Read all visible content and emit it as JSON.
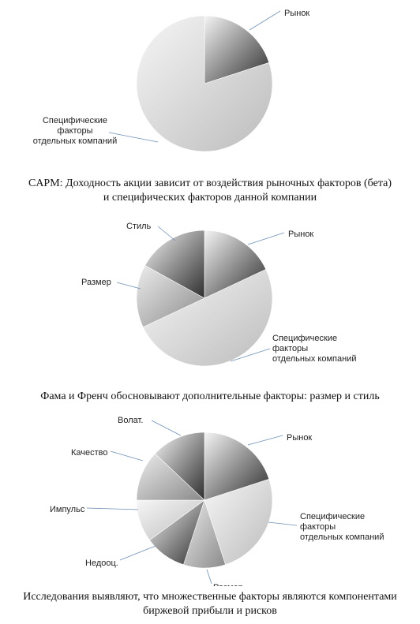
{
  "chart_data": [
    {
      "type": "pie",
      "categories": [
        "Рынок",
        "Специфические факторы отдельных компаний"
      ],
      "values": [
        20,
        80
      ],
      "colors": [
        "grad-dark",
        "grad-light"
      ],
      "title": "",
      "caption_lines": [
        "CAPM: Доходность акции зависит от воздействия рыночных факторов (бета)",
        "и специфических факторов данной компании"
      ]
    },
    {
      "type": "pie",
      "categories": [
        "Рынок",
        "Специфические факторы отдельных компаний",
        "Размер",
        "Стиль"
      ],
      "values": [
        18,
        50,
        15,
        17
      ],
      "colors": [
        "grad-dark",
        "grad-light",
        "grad-mid",
        "grad-dark"
      ],
      "title": "",
      "caption_lines": [
        "Фама и Френч обосновывают дополнительные факторы: размер и стиль"
      ]
    },
    {
      "type": "pie",
      "categories": [
        "Рынок",
        "Специфические факторы отдельных компаний",
        "Размер",
        "Недооц.",
        "Импульс",
        "Качество",
        "Волат."
      ],
      "values": [
        20,
        25,
        10,
        10,
        10,
        12,
        13
      ],
      "colors": [
        "grad-dark",
        "grad-light",
        "grad-mid",
        "grad-dark",
        "grad-light",
        "grad-mid",
        "grad-dark"
      ],
      "title": "",
      "caption_lines": [
        "Исследования выявляют, что множественные факторы являются компонентами",
        "биржевой прибыли и рисков"
      ]
    }
  ]
}
